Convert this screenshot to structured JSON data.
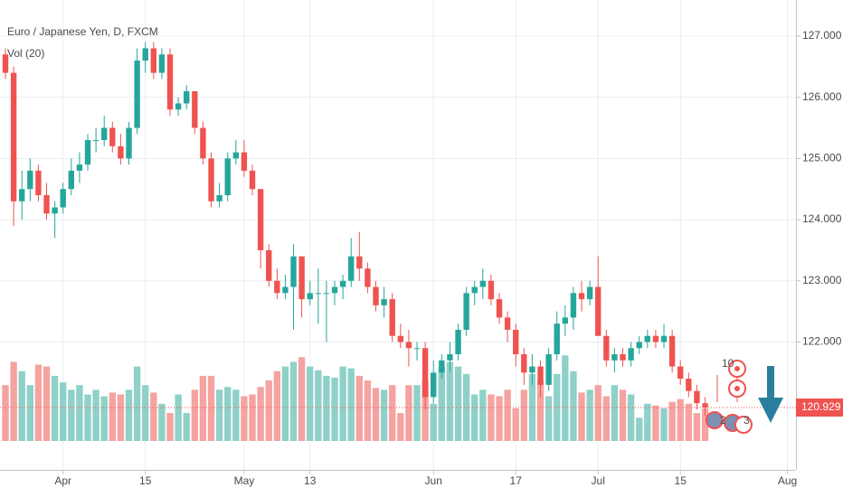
{
  "chart_data": {
    "type": "candlestick",
    "title": "Euro / Japanese Yen, D, FXCM",
    "subtitle": "Vol (20)",
    "up_color": "#26a69a",
    "down_color": "#ef5350",
    "volume_up_color": "#8fd1c9",
    "volume_down_color": "#f5a3a1",
    "xlim": [
      -0.66,
      96.04
    ],
    "xticks": [
      {
        "value": 7,
        "label": "Apr"
      },
      {
        "value": 17,
        "label": "15"
      },
      {
        "value": 29,
        "label": "May"
      },
      {
        "value": 37,
        "label": "13"
      },
      {
        "value": 52,
        "label": "Jun"
      },
      {
        "value": 62,
        "label": "17"
      },
      {
        "value": 72,
        "label": "Jul"
      },
      {
        "value": 82,
        "label": "15"
      },
      {
        "value": 95,
        "label": "Aug"
      }
    ],
    "ylim": [
      119.91,
      127.59
    ],
    "yticks": [
      {
        "value": 122,
        "label": "122.000"
      },
      {
        "value": 123,
        "label": "123.000"
      },
      {
        "value": 124,
        "label": "124.000"
      },
      {
        "value": 125,
        "label": "125.000"
      },
      {
        "value": 126,
        "label": "126.000"
      },
      {
        "value": 127,
        "label": "127.000"
      }
    ],
    "grid": true,
    "volume_ylim": [
      0,
      100
    ],
    "last_price": 120.929,
    "event_badges": [
      "10",
      "2",
      "3"
    ],
    "open": [
      126.7,
      126.4,
      124.3,
      124.5,
      124.8,
      124.4,
      124.1,
      124.2,
      124.5,
      124.8,
      124.9,
      125.3,
      125.3,
      125.5,
      125.2,
      125.0,
      125.5,
      126.6,
      126.8,
      126.4,
      126.7,
      125.8,
      125.9,
      126.1,
      125.5,
      125.0,
      124.3,
      124.4,
      125.0,
      125.1,
      124.8,
      124.5,
      123.5,
      123.0,
      122.8,
      122.9,
      123.4,
      122.7,
      122.8,
      122.8,
      122.8,
      122.9,
      123.0,
      123.4,
      123.2,
      122.9,
      122.6,
      122.7,
      122.1,
      122.0,
      121.9,
      121.9,
      121.1,
      121.5,
      121.7,
      121.8,
      122.2,
      122.8,
      122.9,
      123.0,
      122.7,
      122.4,
      122.2,
      121.8,
      121.5,
      121.6,
      121.3,
      121.8,
      122.3,
      122.4,
      122.8,
      122.7,
      122.9,
      122.1,
      121.7,
      121.8,
      121.7,
      121.9,
      122.0,
      122.1,
      122.0,
      122.1,
      121.6,
      121.4,
      121.2,
      121.0
    ],
    "high": [
      126.8,
      126.5,
      124.8,
      125.0,
      124.9,
      124.6,
      124.3,
      124.6,
      125.0,
      125.1,
      125.4,
      125.5,
      125.7,
      125.6,
      125.4,
      125.6,
      126.8,
      126.9,
      126.9,
      126.8,
      126.8,
      126.0,
      126.2,
      126.1,
      125.6,
      125.1,
      124.6,
      125.1,
      125.3,
      125.3,
      124.9,
      124.5,
      123.6,
      123.2,
      123.1,
      123.6,
      123.4,
      123.0,
      123.2,
      123.0,
      123.0,
      123.1,
      123.7,
      123.8,
      123.3,
      123.0,
      122.9,
      122.8,
      122.3,
      122.2,
      122.0,
      122.0,
      121.7,
      121.8,
      122.0,
      122.3,
      122.9,
      123.0,
      123.2,
      123.1,
      122.8,
      122.5,
      122.3,
      121.9,
      121.8,
      121.7,
      121.9,
      122.5,
      122.6,
      122.9,
      123.0,
      123.0,
      123.4,
      122.2,
      121.9,
      121.9,
      122.0,
      122.1,
      122.2,
      122.2,
      122.3,
      122.2,
      121.7,
      121.5,
      121.3,
      121.1
    ],
    "low": [
      126.3,
      123.9,
      124.0,
      124.3,
      124.3,
      124.0,
      123.7,
      124.1,
      124.4,
      124.6,
      124.8,
      125.1,
      125.2,
      125.1,
      124.9,
      124.9,
      125.4,
      126.4,
      126.3,
      126.3,
      125.7,
      125.7,
      125.8,
      125.4,
      124.9,
      124.2,
      124.2,
      124.3,
      124.9,
      124.7,
      124.4,
      123.2,
      122.9,
      122.7,
      122.7,
      122.2,
      122.4,
      122.6,
      122.3,
      122.0,
      122.6,
      122.7,
      122.9,
      123.0,
      122.8,
      122.5,
      122.4,
      122.0,
      121.9,
      121.6,
      121.7,
      120.9,
      121.0,
      121.4,
      121.5,
      121.7,
      122.1,
      122.6,
      122.7,
      122.6,
      122.3,
      122.0,
      121.6,
      121.3,
      121.3,
      121.1,
      121.2,
      121.7,
      122.1,
      122.2,
      122.5,
      122.6,
      122.1,
      121.6,
      121.5,
      121.6,
      121.6,
      121.8,
      121.9,
      121.9,
      121.9,
      121.5,
      121.3,
      121.1,
      120.9,
      120.8
    ],
    "close": [
      126.4,
      124.3,
      124.5,
      124.8,
      124.4,
      124.1,
      124.2,
      124.5,
      124.8,
      124.9,
      125.3,
      125.3,
      125.5,
      125.2,
      125.0,
      125.5,
      126.6,
      126.8,
      126.4,
      126.7,
      125.8,
      125.9,
      126.1,
      125.5,
      125.0,
      124.3,
      124.4,
      125.0,
      125.1,
      124.8,
      124.5,
      123.5,
      123.0,
      122.8,
      122.9,
      123.4,
      122.7,
      122.8,
      122.8,
      122.8,
      122.9,
      123.0,
      123.4,
      123.2,
      122.9,
      122.6,
      122.7,
      122.1,
      122.0,
      121.9,
      121.9,
      121.1,
      121.5,
      121.7,
      121.8,
      122.2,
      122.8,
      122.9,
      123.0,
      122.7,
      122.4,
      122.2,
      121.8,
      121.5,
      121.6,
      121.3,
      121.8,
      122.3,
      122.4,
      122.8,
      122.7,
      122.9,
      122.1,
      121.7,
      121.8,
      121.7,
      121.9,
      122.0,
      122.1,
      122.0,
      122.1,
      121.6,
      121.4,
      121.2,
      121.0,
      120.93
    ],
    "volume": [
      60,
      85,
      75,
      60,
      82,
      80,
      70,
      63,
      55,
      60,
      50,
      55,
      48,
      52,
      50,
      55,
      80,
      60,
      52,
      40,
      30,
      50,
      30,
      55,
      70,
      70,
      55,
      58,
      55,
      48,
      50,
      58,
      65,
      75,
      80,
      85,
      90,
      80,
      76,
      70,
      68,
      80,
      78,
      70,
      65,
      57,
      55,
      60,
      30,
      60,
      60,
      65,
      40,
      80,
      85,
      80,
      72,
      50,
      55,
      50,
      48,
      55,
      35,
      55,
      72,
      65,
      48,
      72,
      92,
      75,
      52,
      55,
      60,
      48,
      60,
      55,
      50,
      25,
      40,
      38,
      35,
      42,
      45,
      40,
      30,
      35
    ]
  }
}
